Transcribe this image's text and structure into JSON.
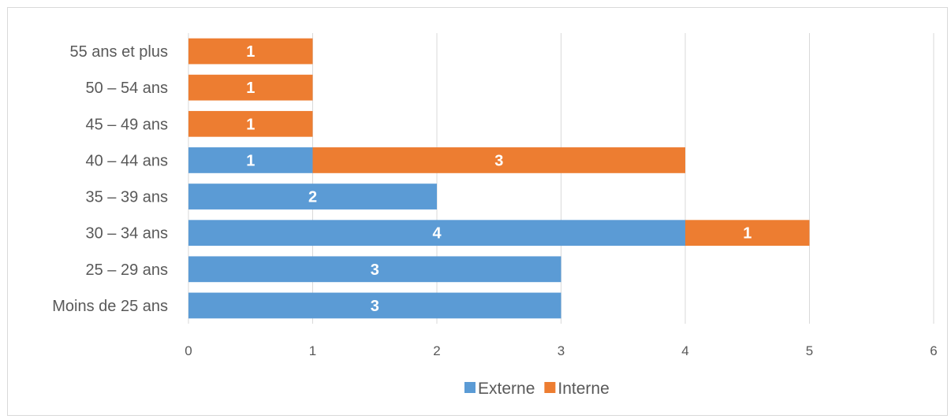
{
  "chart_data": {
    "type": "bar",
    "orientation": "horizontal",
    "stacked": true,
    "categories": [
      "Moins de 25 ans",
      "25 – 29 ans",
      "30 – 34 ans",
      "35 – 39 ans",
      "40 – 44 ans",
      "45 – 49 ans",
      "50 – 54 ans",
      "55 ans et plus"
    ],
    "series": [
      {
        "name": "Externe",
        "color": "#5b9bd5",
        "values": [
          3,
          3,
          4,
          2,
          1,
          0,
          0,
          0
        ]
      },
      {
        "name": "Interne",
        "color": "#ed7d31",
        "values": [
          0,
          0,
          1,
          0,
          3,
          1,
          1,
          1
        ]
      }
    ],
    "xlim": [
      0,
      6
    ],
    "xticks": [
      "0",
      "1",
      "2",
      "3",
      "4",
      "5",
      "6"
    ],
    "title": "",
    "xlabel": "",
    "ylabel": "",
    "grid": "vertical",
    "legend": "bottom"
  }
}
